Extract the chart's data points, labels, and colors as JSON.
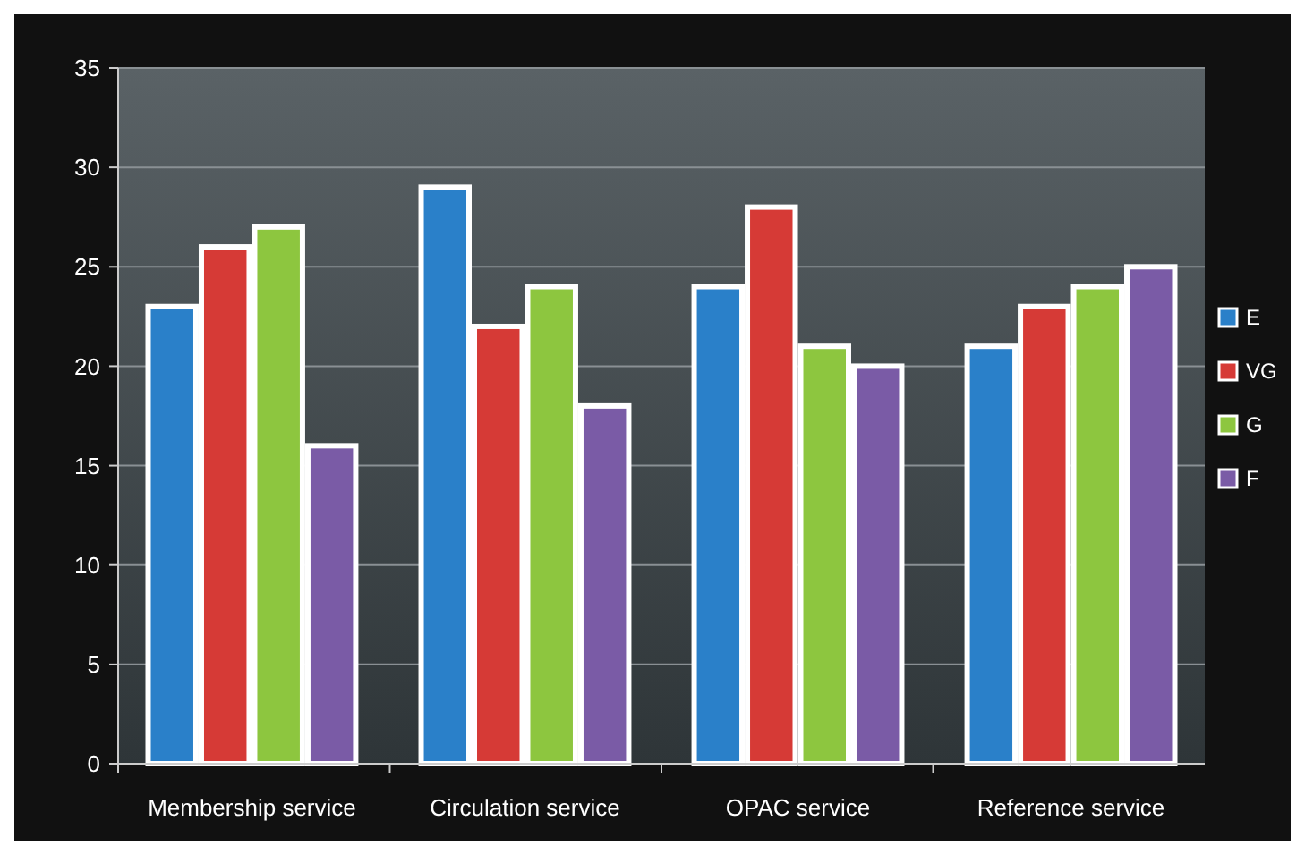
{
  "chart_data": {
    "type": "bar",
    "categories": [
      "Membership service",
      "Circulation service",
      "OPAC service",
      "Reference service"
    ],
    "series": [
      {
        "name": "E",
        "color": "#2a80c9",
        "values": [
          23,
          29,
          24,
          21
        ]
      },
      {
        "name": "VG",
        "color": "#d63a36",
        "values": [
          26,
          22,
          28,
          23
        ]
      },
      {
        "name": "G",
        "color": "#8dc63f",
        "values": [
          27,
          24,
          21,
          24
        ]
      },
      {
        "name": "F",
        "color": "#7a5ba6",
        "values": [
          16,
          18,
          20,
          25
        ]
      }
    ],
    "ylim": [
      0,
      35
    ],
    "yticks": [
      0,
      5,
      10,
      15,
      20,
      25,
      30,
      35
    ],
    "grid": "y",
    "legend": "right"
  }
}
